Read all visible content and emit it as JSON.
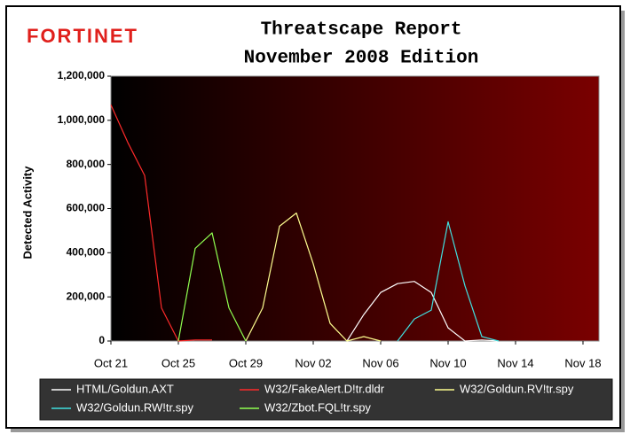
{
  "chart_data": {
    "type": "line",
    "brand": "FORTINET",
    "title": "Threatscape Report",
    "subtitle": "November 2008 Edition",
    "y_label": "Detected Activity",
    "categories": [
      "Oct 21",
      null,
      null,
      null,
      "Oct 25",
      null,
      null,
      null,
      "Oct 29",
      null,
      null,
      null,
      "Nov 02",
      null,
      null,
      null,
      "Nov 06",
      null,
      null,
      null,
      "Nov 10",
      null,
      null,
      null,
      "Nov 14",
      null,
      null,
      null,
      "Nov 18"
    ],
    "series": [
      {
        "name": "HTML/Goldun.AXT",
        "color": "#ffffff",
        "values": [
          null,
          null,
          null,
          null,
          null,
          null,
          null,
          null,
          null,
          null,
          null,
          null,
          null,
          null,
          0,
          120000,
          220000,
          260000,
          270000,
          220000,
          60000,
          0,
          5000,
          0,
          null,
          null,
          null,
          null,
          null
        ]
      },
      {
        "name": "W32/FakeAlert.D!tr.dldr",
        "color": "#ff2a2a",
        "values": [
          1070000,
          900000,
          750000,
          150000,
          0,
          5000,
          5000,
          null,
          null,
          null,
          null,
          null,
          null,
          null,
          null,
          null,
          null,
          null,
          null,
          null,
          null,
          null,
          null,
          null,
          null,
          null,
          null,
          null,
          null
        ]
      },
      {
        "name": "W32/Goldun.RV!tr.spy",
        "color": "#ffff90",
        "values": [
          null,
          null,
          null,
          null,
          null,
          null,
          null,
          null,
          0,
          150000,
          520000,
          580000,
          350000,
          80000,
          0,
          20000,
          0,
          null,
          null,
          null,
          null,
          null,
          null,
          null,
          null,
          null,
          null,
          null,
          null
        ]
      },
      {
        "name": "W32/Goldun.RW!tr.spy",
        "color": "#40e0e0",
        "values": [
          null,
          null,
          null,
          null,
          null,
          null,
          null,
          null,
          null,
          null,
          null,
          null,
          null,
          null,
          null,
          null,
          null,
          0,
          100000,
          140000,
          540000,
          250000,
          20000,
          0,
          null,
          null,
          null,
          null,
          null
        ]
      },
      {
        "name": "W32/Zbot.FQL!tr.spy",
        "color": "#90ff50",
        "values": [
          null,
          null,
          null,
          null,
          0,
          420000,
          490000,
          150000,
          0,
          null,
          null,
          null,
          null,
          null,
          null,
          null,
          null,
          null,
          null,
          null,
          null,
          null,
          null,
          null,
          null,
          null,
          null,
          null,
          null
        ]
      }
    ],
    "ylim": [
      0,
      1200000
    ],
    "yticks": [
      0,
      {
        "value": 200000,
        "label": "200,000"
      },
      {
        "value": 400000,
        "label": "400,000"
      },
      {
        "value": 600000,
        "label": "600,000"
      },
      {
        "value": 800000,
        "label": "800,000"
      },
      {
        "value": 1000000,
        "label": "1,000,000"
      },
      {
        "value": 1200000,
        "label": "1,200,000"
      }
    ],
    "legend": "bottom"
  }
}
